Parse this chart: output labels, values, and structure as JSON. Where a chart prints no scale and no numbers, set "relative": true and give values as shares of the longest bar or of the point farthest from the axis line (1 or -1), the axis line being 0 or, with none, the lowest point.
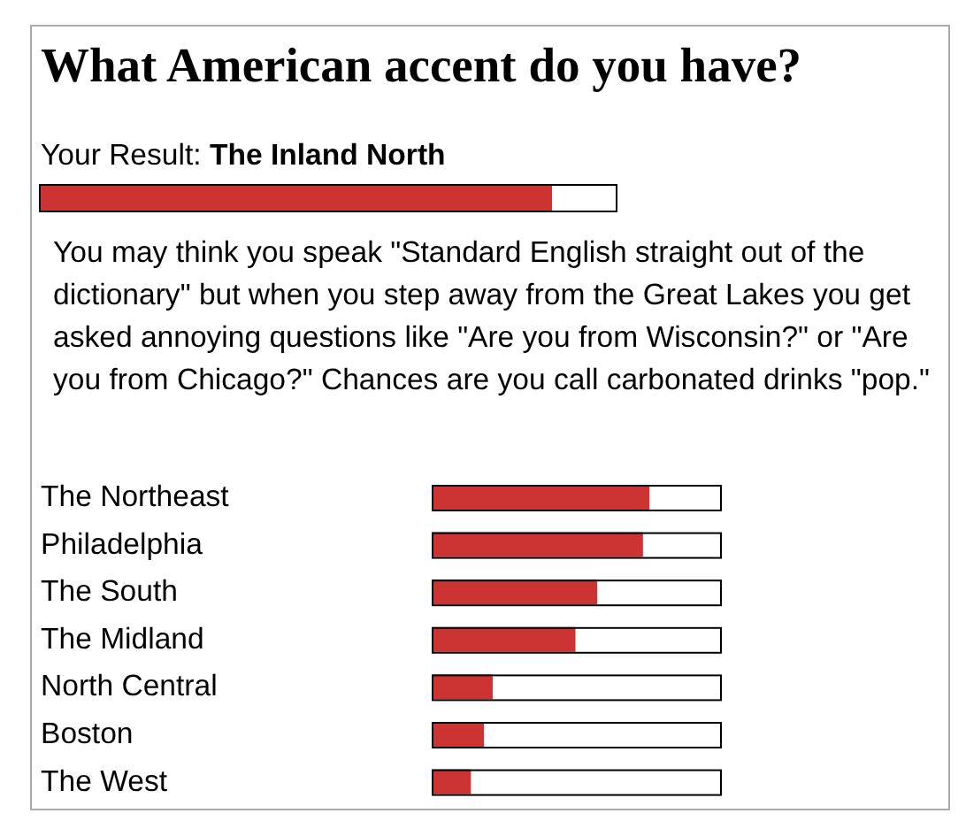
{
  "chart_data": [
    {
      "type": "bar",
      "orientation": "horizontal",
      "relative": true,
      "title": "What American accent do you have?",
      "subtitle": "Your Result:",
      "categories": [
        "The Inland North"
      ],
      "values": [
        1
      ],
      "color": "#cc3333",
      "annotations": [
        "You may think you speak \"Standard English straight out of the dictionary\" but when you step away from the Great Lakes you get asked annoying questions like \"Are you from Wisconsin?\" or \"Are you from Chicago?\" Chances are you call carbonated drinks \"pop.\""
      ]
    },
    {
      "type": "bar",
      "orientation": "horizontal",
      "relative": true,
      "categories": [
        "The Northeast",
        "Philadelphia",
        "The South",
        "The Midland",
        "North Central",
        "Boston",
        "The West"
      ],
      "values": [
        1,
        0.97,
        0.76,
        0.66,
        0.28,
        0.24,
        0.18
      ],
      "color": "#cc3333"
    }
  ]
}
